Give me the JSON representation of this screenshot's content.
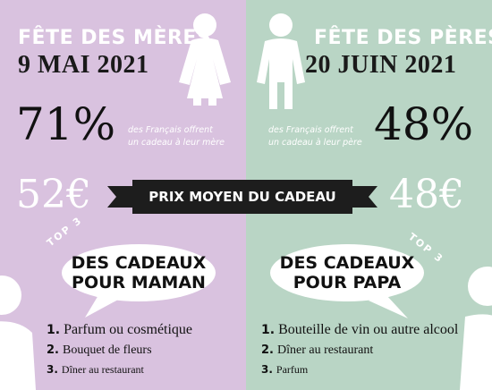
{
  "left": {
    "fete_title": "FÊTE DES MÈRES",
    "date": "9 MAI 2021",
    "percent": "71%",
    "offer_line1": "des Français offrent",
    "offer_line2": "un cadeau à leur mère",
    "price": "52€",
    "bubble_line1": "DES CADEAUX",
    "bubble_line2": "POUR MAMAN",
    "top_items": [
      {
        "num": "1.",
        "label": "Parfum ou cosmétique"
      },
      {
        "num": "2.",
        "label": "Bouquet de fleurs"
      },
      {
        "num": "3.",
        "label": "Dîner au restaurant"
      }
    ]
  },
  "right": {
    "fete_title": "FÊTE DES PÈRES",
    "date": "20 JUIN 2021",
    "percent": "48%",
    "offer_line1": "des Français offrent",
    "offer_line2": "un cadeau à leur père",
    "price": "48€",
    "bubble_line1": "DES CADEAUX",
    "bubble_line2": "POUR PAPA",
    "top_items": [
      {
        "num": "1.",
        "label": "Bouteille de vin ou autre alcool"
      },
      {
        "num": "2.",
        "label": "Dîner au restaurant"
      },
      {
        "num": "3.",
        "label": "Parfum"
      }
    ]
  },
  "banner": "PRIX MOYEN DU CADEAU",
  "top3_label": "TOP 3",
  "icons": {
    "mother": "woman-icon",
    "father": "man-icon"
  },
  "colors": {
    "mother_bg": "#d9c2df",
    "father_bg": "#b9d5c5",
    "banner_bg": "#1d1d1d"
  }
}
